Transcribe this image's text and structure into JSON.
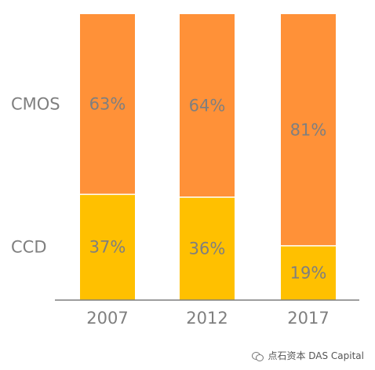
{
  "chart_data": {
    "type": "bar",
    "stacked": true,
    "categories": [
      "2007",
      "2012",
      "2017"
    ],
    "series": [
      {
        "name": "CCD",
        "values": [
          37,
          36,
          19
        ],
        "labels": [
          "37%",
          "36%",
          "19%"
        ],
        "color": "#FFC000"
      },
      {
        "name": "CMOS",
        "values": [
          63,
          64,
          81
        ],
        "labels": [
          "63%",
          "64%",
          "81%"
        ],
        "color": "#FF9138"
      }
    ],
    "ylim": [
      0,
      100
    ],
    "grid": false,
    "axis_color": "#7f7f7f",
    "label_color": "#7f7f7f"
  },
  "watermark": {
    "text": "点石资本 DAS Capital",
    "icon": "chat-bubbles-icon"
  }
}
